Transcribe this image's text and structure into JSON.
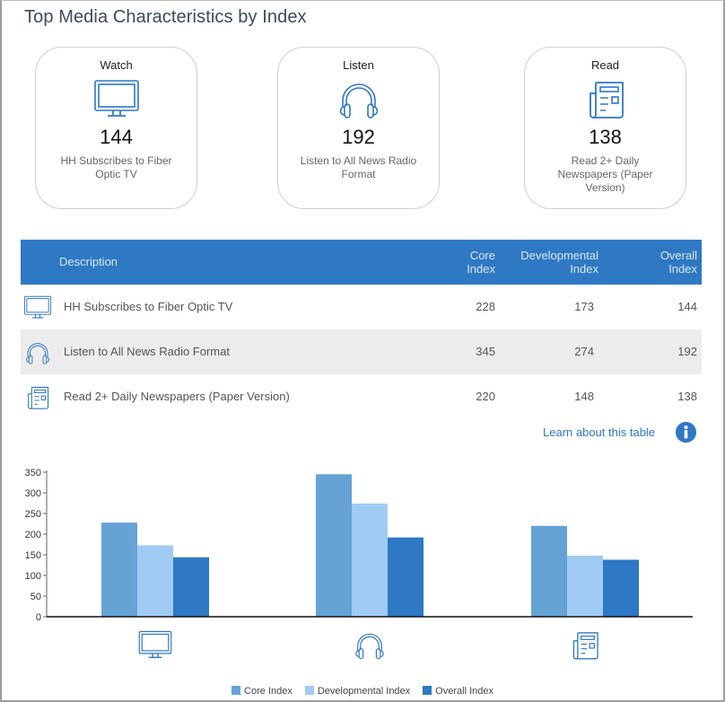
{
  "page": {
    "title": "Top Media Characteristics by Index"
  },
  "cards": [
    {
      "label": "Watch",
      "icon": "tv-icon",
      "value": "144",
      "description": "HH Subscribes to Fiber Optic TV"
    },
    {
      "label": "Listen",
      "icon": "headphones-icon",
      "value": "192",
      "description": "Listen to All News Radio Format"
    },
    {
      "label": "Read",
      "icon": "newspaper-icon",
      "value": "138",
      "description": "Read 2+ Daily Newspapers (Paper Version)"
    }
  ],
  "table": {
    "headers": {
      "description": "Description",
      "core_line1": "Core",
      "core_line2": "Index",
      "dev_line1": "Developmental",
      "dev_line2": "Index",
      "overall_line1": "Overall",
      "overall_line2": "Index"
    },
    "rows": [
      {
        "icon": "tv-icon",
        "description": "HH Subscribes to Fiber Optic TV",
        "core": "228",
        "developmental": "173",
        "overall": "144"
      },
      {
        "icon": "headphones-icon",
        "description": "Listen to All News Radio Format",
        "core": "345",
        "developmental": "274",
        "overall": "192"
      },
      {
        "icon": "newspaper-icon",
        "description": "Read 2+ Daily Newspapers (Paper Version)",
        "core": "220",
        "developmental": "148",
        "overall": "138"
      }
    ],
    "learn_link": "Learn about this table",
    "info_icon": "info-icon"
  },
  "colors": {
    "header_blue": "#2e78c4",
    "core": "#65a3d6",
    "developmental": "#a0ccf4",
    "overall": "#2e78c4",
    "icon_blue": "#2e78c4"
  },
  "chart_data": {
    "type": "bar",
    "title": "",
    "xlabel": "",
    "ylabel": "",
    "categories": [
      "tv-icon",
      "headphones-icon",
      "newspaper-icon"
    ],
    "category_names": [
      "HH Subscribes to Fiber Optic TV",
      "Listen to All News Radio Format",
      "Read 2+ Daily Newspapers (Paper Version)"
    ],
    "series": [
      {
        "name": "Core Index",
        "values": [
          228,
          345,
          220
        ],
        "color": "#65a3d6"
      },
      {
        "name": "Developmental Index",
        "values": [
          173,
          274,
          148
        ],
        "color": "#a0ccf4"
      },
      {
        "name": "Overall Index",
        "values": [
          144,
          192,
          138
        ],
        "color": "#2e78c4"
      }
    ],
    "ylim": [
      0,
      350
    ],
    "yticks": [
      0,
      50,
      100,
      150,
      200,
      250,
      300,
      350
    ],
    "grid": false,
    "legend": "bottom-center"
  }
}
